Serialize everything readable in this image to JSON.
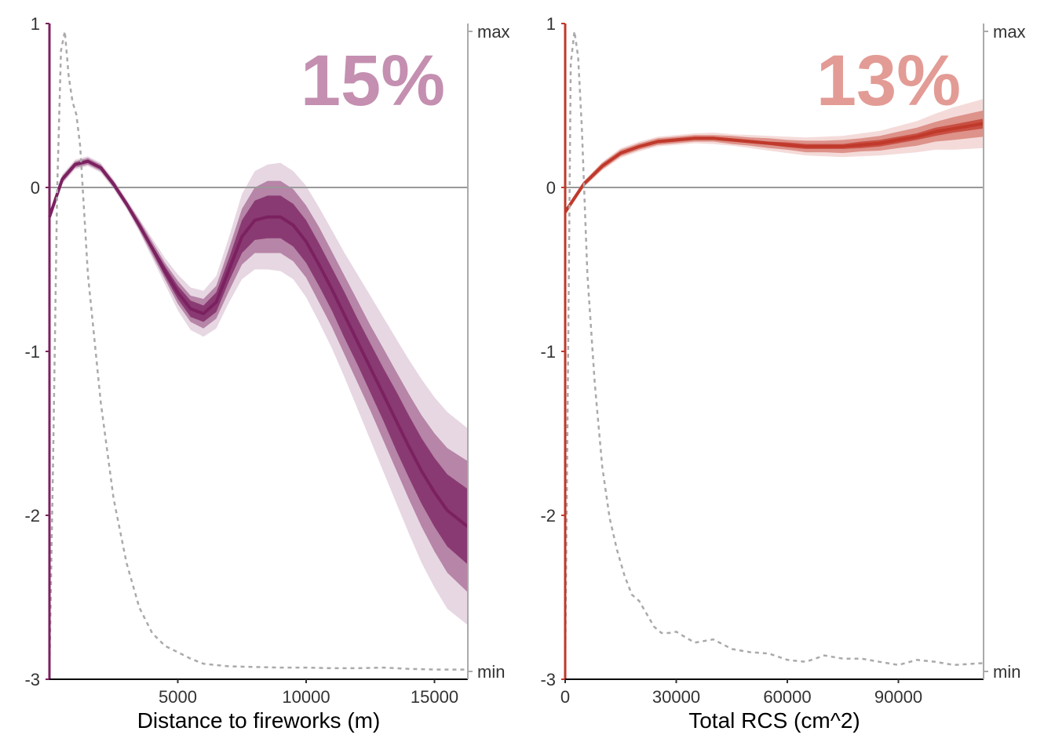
{
  "colors": {
    "left_accent": "#7b2160",
    "right_accent": "#c0392b",
    "left_pct": "#c48fb0",
    "right_pct": "#e39b95",
    "density": "#aaaaaa",
    "zero_line": "#999999",
    "right_axis": "#aaaaaa"
  },
  "chart_data": [
    {
      "type": "line",
      "percent_label": "15%",
      "xlabel": "Distance to fireworks (m)",
      "xlim": [
        0,
        16300
      ],
      "ylim": [
        -3,
        1
      ],
      "x_ticks": [
        5000,
        10000,
        15000
      ],
      "y_ticks": [
        1,
        0,
        -1,
        -2,
        -3
      ],
      "right_ticks": [
        "max",
        "min"
      ],
      "grid": false,
      "series": [
        {
          "kind": "mean",
          "x": [
            0,
            500,
            1000,
            1500,
            2000,
            2500,
            3000,
            3500,
            4000,
            4500,
            5000,
            5500,
            6000,
            6500,
            7000,
            7500,
            8000,
            8500,
            9000,
            9500,
            10000,
            10500,
            11000,
            11500,
            12000,
            12500,
            13000,
            13500,
            14000,
            14500,
            15000,
            15500,
            16300
          ],
          "y": [
            -0.18,
            0.05,
            0.14,
            0.16,
            0.12,
            0.02,
            -0.1,
            -0.23,
            -0.37,
            -0.51,
            -0.64,
            -0.74,
            -0.77,
            -0.7,
            -0.5,
            -0.3,
            -0.2,
            -0.18,
            -0.18,
            -0.23,
            -0.33,
            -0.47,
            -0.62,
            -0.78,
            -0.94,
            -1.1,
            -1.26,
            -1.42,
            -1.58,
            -1.73,
            -1.86,
            -1.97,
            -2.07
          ],
          "band_inner": [
            0.01,
            0.01,
            0.01,
            0.01,
            0.01,
            0.01,
            0.01,
            0.01,
            0.02,
            0.03,
            0.04,
            0.05,
            0.05,
            0.06,
            0.07,
            0.1,
            0.12,
            0.13,
            0.13,
            0.13,
            0.13,
            0.13,
            0.13,
            0.14,
            0.14,
            0.15,
            0.16,
            0.18,
            0.19,
            0.2,
            0.21,
            0.22,
            0.23
          ],
          "band_mid": [
            0.02,
            0.02,
            0.02,
            0.02,
            0.02,
            0.02,
            0.02,
            0.03,
            0.04,
            0.05,
            0.07,
            0.08,
            0.09,
            0.1,
            0.13,
            0.17,
            0.2,
            0.22,
            0.22,
            0.22,
            0.22,
            0.23,
            0.23,
            0.24,
            0.25,
            0.26,
            0.28,
            0.3,
            0.32,
            0.34,
            0.36,
            0.38,
            0.4
          ],
          "band_outer": [
            0.03,
            0.03,
            0.03,
            0.03,
            0.03,
            0.03,
            0.03,
            0.04,
            0.06,
            0.08,
            0.11,
            0.13,
            0.14,
            0.16,
            0.2,
            0.26,
            0.3,
            0.32,
            0.33,
            0.33,
            0.34,
            0.35,
            0.36,
            0.38,
            0.41,
            0.44,
            0.47,
            0.5,
            0.53,
            0.56,
            0.58,
            0.6,
            0.6
          ]
        },
        {
          "kind": "density",
          "x": [
            0,
            150,
            300,
            450,
            600,
            750,
            900,
            1050,
            1200,
            1500,
            2000,
            2500,
            3000,
            3500,
            4000,
            4500,
            5000,
            5500,
            6000,
            7000,
            8000,
            9000,
            10000,
            11000,
            12000,
            13000,
            14000,
            15000,
            16000,
            16300
          ],
          "y": [
            0.0,
            0.35,
            0.75,
            0.97,
            1.0,
            0.93,
            0.89,
            0.87,
            0.82,
            0.62,
            0.42,
            0.27,
            0.17,
            0.1,
            0.06,
            0.04,
            0.03,
            0.02,
            0.012,
            0.008,
            0.007,
            0.006,
            0.006,
            0.005,
            0.005,
            0.006,
            0.004,
            0.003,
            0.003,
            0.003
          ]
        }
      ]
    },
    {
      "type": "line",
      "percent_label": "13%",
      "xlabel": "Total RCS (cm^2)",
      "xlim": [
        0,
        113000
      ],
      "ylim": [
        -3,
        1
      ],
      "x_ticks": [
        0,
        30000,
        60000,
        90000
      ],
      "y_ticks": [
        1,
        0,
        -1,
        -2,
        -3
      ],
      "right_ticks": [
        "max",
        "min"
      ],
      "grid": false,
      "series": [
        {
          "kind": "mean",
          "x": [
            0,
            5000,
            10000,
            15000,
            20000,
            25000,
            30000,
            35000,
            40000,
            45000,
            50000,
            55000,
            60000,
            65000,
            70000,
            75000,
            80000,
            85000,
            90000,
            95000,
            100000,
            105000,
            113000
          ],
          "y": [
            -0.15,
            0.02,
            0.13,
            0.21,
            0.25,
            0.28,
            0.29,
            0.3,
            0.3,
            0.29,
            0.28,
            0.27,
            0.26,
            0.25,
            0.25,
            0.25,
            0.26,
            0.27,
            0.29,
            0.31,
            0.34,
            0.36,
            0.39
          ],
          "band_inner": [
            0.01,
            0.01,
            0.01,
            0.01,
            0.01,
            0.01,
            0.01,
            0.01,
            0.01,
            0.01,
            0.01,
            0.01,
            0.015,
            0.015,
            0.015,
            0.015,
            0.02,
            0.02,
            0.02,
            0.02,
            0.025,
            0.025,
            0.03
          ],
          "band_mid": [
            0.015,
            0.015,
            0.02,
            0.02,
            0.02,
            0.02,
            0.02,
            0.02,
            0.02,
            0.025,
            0.025,
            0.03,
            0.03,
            0.035,
            0.035,
            0.04,
            0.04,
            0.045,
            0.05,
            0.055,
            0.06,
            0.07,
            0.08
          ],
          "band_outer": [
            0.02,
            0.02,
            0.025,
            0.03,
            0.03,
            0.03,
            0.03,
            0.03,
            0.035,
            0.035,
            0.04,
            0.045,
            0.05,
            0.055,
            0.06,
            0.065,
            0.07,
            0.075,
            0.085,
            0.095,
            0.11,
            0.13,
            0.15
          ]
        },
        {
          "kind": "density",
          "x": [
            0,
            800,
            1500,
            2500,
            3500,
            4500,
            6000,
            8000,
            10000,
            12000,
            14000,
            16000,
            18000,
            20000,
            22000,
            24000,
            26000,
            28000,
            30000,
            32000,
            35000,
            40000,
            45000,
            50000,
            55000,
            60000,
            65000,
            70000,
            75000,
            80000,
            85000,
            90000,
            95000,
            100000,
            105000,
            110000,
            113000
          ],
          "y": [
            0.0,
            0.5,
            0.95,
            1.0,
            0.96,
            0.85,
            0.62,
            0.45,
            0.32,
            0.24,
            0.19,
            0.15,
            0.12,
            0.11,
            0.09,
            0.07,
            0.06,
            0.06,
            0.062,
            0.055,
            0.045,
            0.05,
            0.035,
            0.03,
            0.028,
            0.018,
            0.015,
            0.025,
            0.02,
            0.02,
            0.015,
            0.01,
            0.018,
            0.015,
            0.01,
            0.012,
            0.013
          ]
        }
      ]
    }
  ]
}
